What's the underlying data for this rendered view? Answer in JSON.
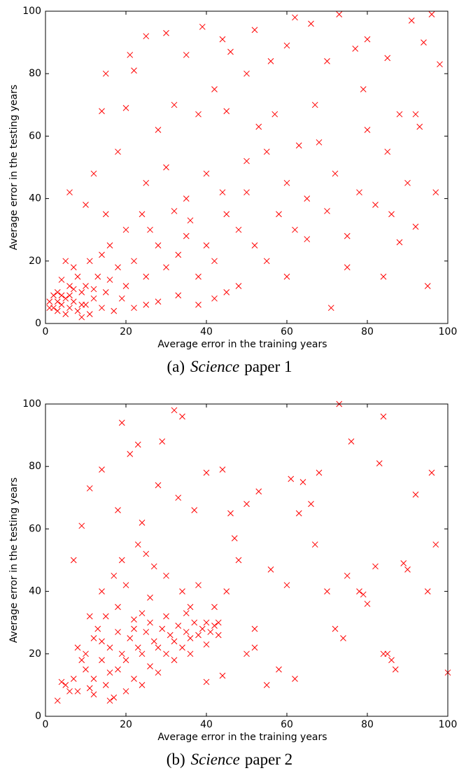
{
  "chart_data": [
    {
      "type": "scatter",
      "marker": "x",
      "color": "#ff0000",
      "xlabel": "Average error in the training years",
      "ylabel": "Average error in the testing years",
      "caption": {
        "label": "(a)",
        "emphasis": "Science",
        "text": "paper 1"
      },
      "xlim": [
        0,
        100
      ],
      "ylim": [
        0,
        100
      ],
      "xticks": [
        0,
        20,
        40,
        60,
        80,
        100
      ],
      "yticks": [
        0,
        20,
        40,
        60,
        80,
        100
      ],
      "x": [
        2,
        3,
        4,
        5,
        5,
        6,
        7,
        8,
        9,
        10,
        3,
        4,
        6,
        8,
        10,
        12,
        13,
        15,
        5,
        7,
        11,
        14,
        16,
        18,
        20,
        22,
        25,
        28,
        30,
        33,
        35,
        38,
        40,
        42,
        20,
        15,
        10,
        6,
        12,
        18,
        25,
        30,
        35,
        40,
        45,
        48,
        50,
        52,
        55,
        58,
        60,
        62,
        65,
        68,
        70,
        72,
        75,
        78,
        80,
        82,
        85,
        88,
        90,
        92,
        95,
        97,
        98,
        96,
        94,
        91,
        88,
        85,
        80,
        77,
        73,
        70,
        66,
        62,
        60,
        56,
        52,
        50,
        46,
        44,
        42,
        39,
        35,
        30,
        25,
        21,
        22,
        15,
        14,
        20,
        28,
        32,
        38,
        45,
        53,
        57,
        63,
        67,
        71,
        75,
        84,
        93,
        60,
        55,
        48,
        45,
        42,
        38,
        33,
        28,
        25,
        22,
        19,
        17,
        14,
        11,
        9,
        1,
        1,
        2,
        3,
        4,
        6,
        7,
        9,
        12,
        16,
        24,
        26,
        32,
        36,
        44,
        50,
        65,
        79,
        86,
        92
      ],
      "y": [
        5,
        4,
        6,
        3,
        8,
        5,
        7,
        4,
        10,
        6,
        10,
        14,
        12,
        15,
        12,
        8,
        15,
        10,
        20,
        18,
        20,
        22,
        14,
        18,
        12,
        20,
        15,
        25,
        18,
        22,
        28,
        15,
        25,
        20,
        30,
        35,
        38,
        42,
        48,
        55,
        45,
        50,
        40,
        48,
        35,
        30,
        42,
        25,
        55,
        35,
        45,
        30,
        40,
        58,
        36,
        48,
        28,
        42,
        62,
        38,
        55,
        26,
        45,
        31,
        12,
        42,
        83,
        99,
        90,
        97,
        67,
        85,
        91,
        88,
        99,
        84,
        96,
        98,
        89,
        84,
        94,
        80,
        87,
        91,
        75,
        95,
        86,
        93,
        92,
        86,
        81,
        80,
        68,
        69,
        62,
        70,
        67,
        68,
        63,
        67,
        57,
        70,
        5,
        18,
        15,
        63,
        15,
        20,
        12,
        10,
        8,
        6,
        9,
        7,
        6,
        5,
        8,
        4,
        5,
        3,
        2,
        5,
        7,
        9,
        7,
        9,
        9,
        11,
        6,
        11,
        25,
        35,
        30,
        36,
        33,
        42,
        52,
        27,
        75,
        35,
        67
      ]
    },
    {
      "type": "scatter",
      "marker": "x",
      "color": "#ff0000",
      "xlabel": "Average error in the training years",
      "ylabel": "Average error in the testing years",
      "caption": {
        "label": "(b)",
        "emphasis": "Science",
        "text": "paper 2"
      },
      "xlim": [
        0,
        100
      ],
      "ylim": [
        0,
        100
      ],
      "xticks": [
        0,
        20,
        40,
        60,
        80,
        100
      ],
      "yticks": [
        0,
        20,
        40,
        60,
        80,
        100
      ],
      "x": [
        5,
        8,
        10,
        12,
        14,
        15,
        16,
        17,
        18,
        19,
        20,
        21,
        22,
        23,
        24,
        25,
        26,
        27,
        28,
        29,
        30,
        31,
        32,
        33,
        34,
        35,
        36,
        37,
        38,
        39,
        40,
        41,
        42,
        43,
        43,
        40,
        36,
        32,
        28,
        24,
        20,
        16,
        12,
        10,
        13,
        15,
        18,
        20,
        22,
        24,
        26,
        12,
        9,
        7,
        3,
        4,
        11,
        14,
        17,
        19,
        23,
        25,
        27,
        30,
        34,
        36,
        38,
        42,
        45,
        48,
        50,
        52,
        55,
        58,
        60,
        62,
        64,
        66,
        68,
        70,
        72,
        74,
        75,
        76,
        78,
        80,
        82,
        83,
        84,
        85,
        86,
        89,
        90,
        92,
        96,
        97,
        100,
        73,
        32,
        34,
        29,
        19,
        21,
        23,
        14,
        11,
        9,
        7,
        18,
        24,
        28,
        33,
        37,
        40,
        44,
        46,
        50,
        53,
        56,
        61,
        63,
        67,
        79,
        84,
        87,
        95,
        47,
        52,
        44,
        40,
        35,
        30,
        26,
        22,
        18,
        16,
        14,
        11,
        8,
        6
      ],
      "y": [
        10,
        8,
        15,
        12,
        18,
        10,
        22,
        6,
        15,
        20,
        18,
        25,
        12,
        22,
        20,
        27,
        16,
        24,
        22,
        28,
        20,
        26,
        24,
        29,
        22,
        27,
        25,
        30,
        26,
        28,
        30,
        27,
        29,
        30,
        26,
        23,
        20,
        18,
        14,
        10,
        8,
        5,
        7,
        20,
        28,
        32,
        35,
        42,
        28,
        33,
        38,
        25,
        18,
        12,
        5,
        11,
        32,
        40,
        45,
        50,
        55,
        52,
        48,
        45,
        40,
        35,
        42,
        35,
        40,
        50,
        20,
        22,
        10,
        15,
        42,
        12,
        75,
        68,
        78,
        40,
        28,
        25,
        45,
        88,
        40,
        36,
        48,
        81,
        96,
        20,
        18,
        49,
        47,
        71,
        78,
        55,
        14,
        100,
        98,
        96,
        88,
        94,
        84,
        87,
        79,
        73,
        61,
        50,
        66,
        62,
        74,
        70,
        66,
        78,
        79,
        65,
        68,
        72,
        47,
        76,
        65,
        55,
        39,
        20,
        15,
        40,
        57,
        28,
        13,
        11,
        33,
        32,
        30,
        31,
        27,
        14,
        24,
        9,
        22,
        8
      ]
    }
  ]
}
